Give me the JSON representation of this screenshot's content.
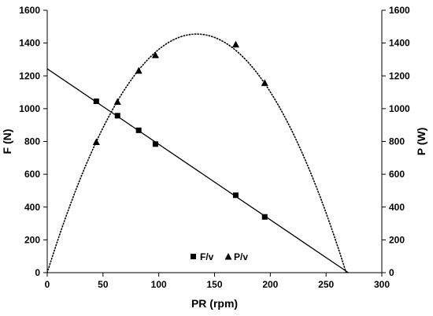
{
  "chart_data": {
    "type": "scatter",
    "xlabel": "PR (rpm)",
    "ylabel_left": "F (N)",
    "ylabel_right": "P (W)",
    "xlim": [
      0,
      300
    ],
    "ylim_left": [
      0,
      1600
    ],
    "ylim_right": [
      0,
      1600
    ],
    "x_ticks": [
      "0",
      "50",
      "100",
      "150",
      "200",
      "250",
      "300"
    ],
    "y_ticks": [
      "0",
      "200",
      "400",
      "600",
      "800",
      "1000",
      "1200",
      "1400",
      "1600"
    ],
    "grid": false,
    "legend_position": "bottom-center",
    "series": [
      {
        "name": "F/v",
        "marker": "square",
        "axis": "left",
        "points": [
          [
            44,
            1045
          ],
          [
            63,
            957
          ],
          [
            82,
            868
          ],
          [
            97,
            784
          ],
          [
            169,
            472
          ],
          [
            195,
            340
          ]
        ]
      },
      {
        "name": "P/v",
        "marker": "triangle",
        "axis": "right",
        "points": [
          [
            44,
            795
          ],
          [
            63,
            1040
          ],
          [
            82,
            1230
          ],
          [
            97,
            1325
          ],
          [
            169,
            1390
          ],
          [
            195,
            1155
          ]
        ]
      }
    ],
    "fits": [
      {
        "series": "F/v",
        "kind": "linear",
        "line_style": "solid",
        "intercept": 1243,
        "x_end": 270
      },
      {
        "series": "P/v",
        "kind": "quadratic",
        "line_style": "dotted",
        "peak_x": 134,
        "peak_y": 1455,
        "x_end": 270
      }
    ]
  }
}
